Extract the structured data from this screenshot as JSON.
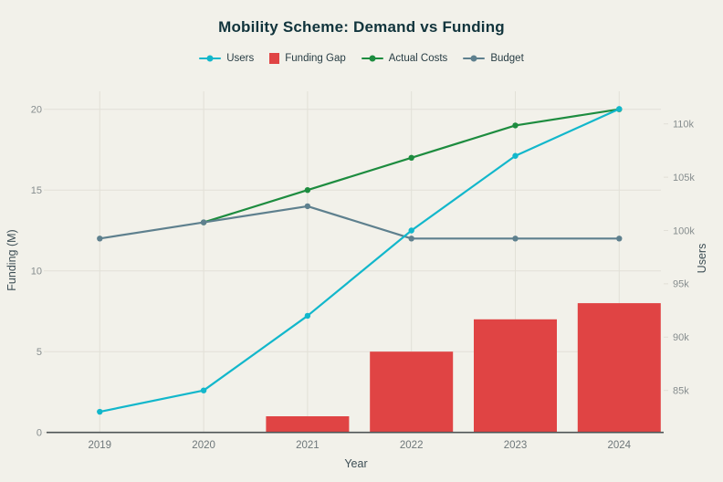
{
  "title": "Mobility Scheme: Demand vs Funding",
  "axis_titles": {
    "left": "Funding (M)",
    "right": "Users",
    "bottom": "Year"
  },
  "legend": {
    "items": [
      {
        "label": "Users",
        "color": "#12b7cb",
        "swatch": "line-dot"
      },
      {
        "label": "Funding Gap",
        "color": "#e04444",
        "swatch": "square"
      },
      {
        "label": "Actual Costs",
        "color": "#1d8c3f",
        "swatch": "line-dot"
      },
      {
        "label": "Budget",
        "color": "#5e808e",
        "swatch": "line-dot"
      }
    ]
  },
  "colors": {
    "background": "#f2f1ea",
    "title": "#11343c",
    "axis_title": "#3d4e55",
    "tick_label": "#868d8e",
    "x_tick_label": "#6e777a",
    "grid": "#e2e0d7",
    "axis_line": "#4e5456",
    "users": "#12b7cb",
    "funding_gap": "#e04444",
    "actual_costs": "#1d8c3f",
    "budget": "#5e808e"
  },
  "chart_data": {
    "type": "combo-bar-line",
    "title": "Mobility Scheme: Demand vs Funding",
    "xlabel": "Year",
    "ylabel_left": "Funding (M)",
    "ylabel_right": "Users",
    "categories": [
      "2019",
      "2020",
      "2021",
      "2022",
      "2023",
      "2024"
    ],
    "grid": true,
    "legend_position": "top-center",
    "ylim_left": [
      0,
      20
    ],
    "yticks_left": [
      0,
      5,
      10,
      15,
      20
    ],
    "yticks_right": [
      85000,
      90000,
      95000,
      100000,
      105000,
      110000
    ],
    "ytick_right_labels": [
      "85k",
      "90k",
      "95k",
      "100k",
      "105k",
      "110k"
    ],
    "series": [
      {
        "name": "Funding Gap",
        "type": "bar",
        "axis": "left",
        "color": "#e04444",
        "values": [
          0,
          0,
          1,
          5,
          7,
          8
        ]
      },
      {
        "name": "Actual Costs",
        "type": "line",
        "axis": "left",
        "color": "#1d8c3f",
        "values": [
          null,
          13,
          15,
          17,
          19,
          20
        ]
      },
      {
        "name": "Budget",
        "type": "line",
        "axis": "left",
        "color": "#5e808e",
        "values": [
          12,
          13,
          14,
          12,
          12,
          12
        ]
      },
      {
        "name": "Users",
        "type": "line",
        "axis": "right",
        "color": "#12b7cb",
        "values": [
          83000,
          85000,
          92000,
          100000,
          107000,
          111400
        ]
      }
    ]
  }
}
